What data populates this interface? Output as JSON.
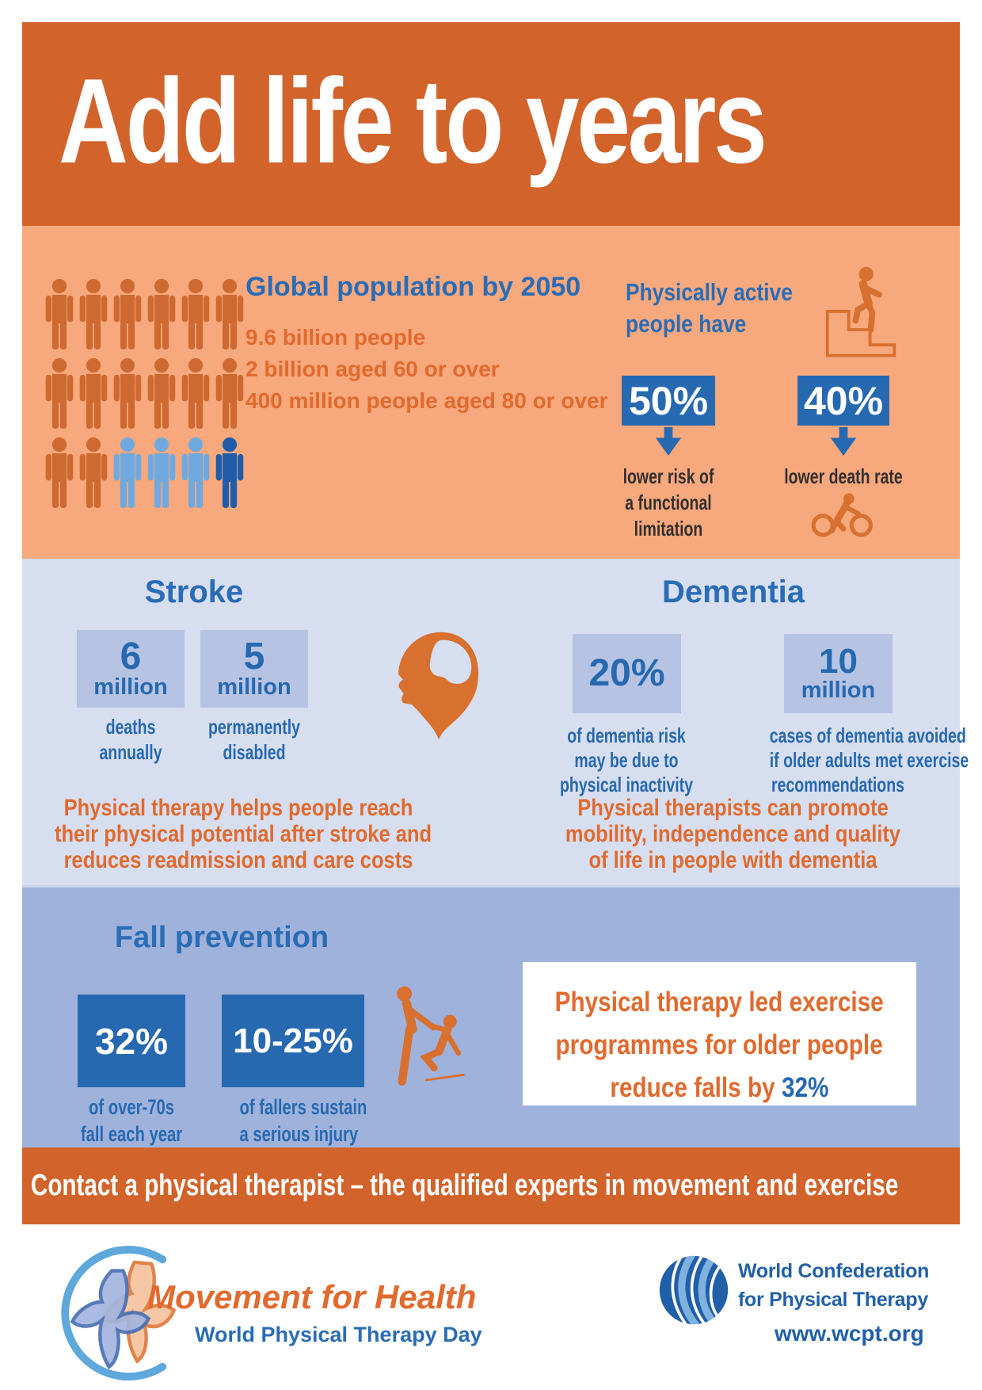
{
  "colors": {
    "header_orange": "#D2632B",
    "peach": "#F7A87C",
    "lavender": "#D7DEF0",
    "periwinkle_box": "#B6C3E3",
    "steel_blue_band": "#9FB2DB",
    "stat_blue": "#2769B1",
    "title_blue": "#2A6CB5",
    "text_orange": "#E16A2E",
    "icon_orange": "#D8702F",
    "dark_text": "#332F2E",
    "white": "#FFFFFF",
    "person_orange": "#CE6A31",
    "person_lightblue": "#6FA9DF",
    "person_darkblue": "#1F5CA9",
    "logo_circle_blue": "#5FA8DB",
    "wcpt_dark_blue": "#2160A8",
    "wcpt_light_blue": "#7FB2DF"
  },
  "header": {
    "title": "Add life to years"
  },
  "population": {
    "title": "Global population by 2050",
    "facts": [
      "9.6 billion people",
      "2 billion aged 60 or over",
      "400 million people aged 80 or over"
    ],
    "rows": [
      [
        "orange",
        "orange",
        "orange",
        "orange",
        "orange",
        "orange"
      ],
      [
        "orange",
        "orange",
        "orange",
        "orange",
        "orange",
        "orange"
      ],
      [
        "orange",
        "orange",
        "lightblue",
        "lightblue",
        "lightblue",
        "darkblue"
      ]
    ]
  },
  "active": {
    "title_lines": [
      "Physically active",
      "people have"
    ],
    "stats": [
      {
        "value": "50%",
        "caption_lines": [
          "lower risk of",
          "a functional",
          "limitation"
        ]
      },
      {
        "value": "40%",
        "caption_lines": [
          "lower death rate"
        ]
      }
    ]
  },
  "stroke": {
    "title": "Stroke",
    "stats": [
      {
        "value": "6",
        "unit": "million",
        "caption_lines": [
          "deaths",
          "annually"
        ]
      },
      {
        "value": "5",
        "unit": "million",
        "caption_lines": [
          "permanently",
          "disabled"
        ]
      }
    ],
    "note_lines": [
      "Physical therapy helps people reach",
      "their physical potential after stroke and",
      "reduces readmission and care costs"
    ]
  },
  "dementia": {
    "title": "Dementia",
    "stats": [
      {
        "value": "20%",
        "unit": "",
        "caption_lines": [
          "of dementia risk",
          "may be due to",
          "physical inactivity"
        ]
      },
      {
        "value": "10",
        "unit": "million",
        "caption_lines": [
          "cases of dementia avoided",
          "if older adults met exercise",
          "recommendations"
        ]
      }
    ],
    "note_lines": [
      "Physical therapists can promote",
      "mobility, independence and quality",
      "of life in people with dementia"
    ]
  },
  "falls": {
    "title": "Fall prevention",
    "stats": [
      {
        "value": "32%",
        "caption_lines": [
          "of over-70s",
          "fall each year"
        ]
      },
      {
        "value": "10-25%",
        "caption_lines": [
          "of fallers sustain",
          "a serious injury"
        ]
      }
    ],
    "highlight": {
      "lines": [
        "Physical therapy led exercise",
        "programmes for older people"
      ],
      "last_line_prefix": "reduce falls by ",
      "last_line_value": "32%"
    }
  },
  "contact_bar": {
    "text": "Contact a physical therapist –  the qualified experts in movement and exercise"
  },
  "footer": {
    "movement_for_health": {
      "title": "Movement for Health",
      "subtitle": "World Physical Therapy Day"
    },
    "wcpt": {
      "name_lines": [
        "World Confederation",
        "for Physical Therapy"
      ],
      "url": "www.wcpt.org"
    }
  }
}
